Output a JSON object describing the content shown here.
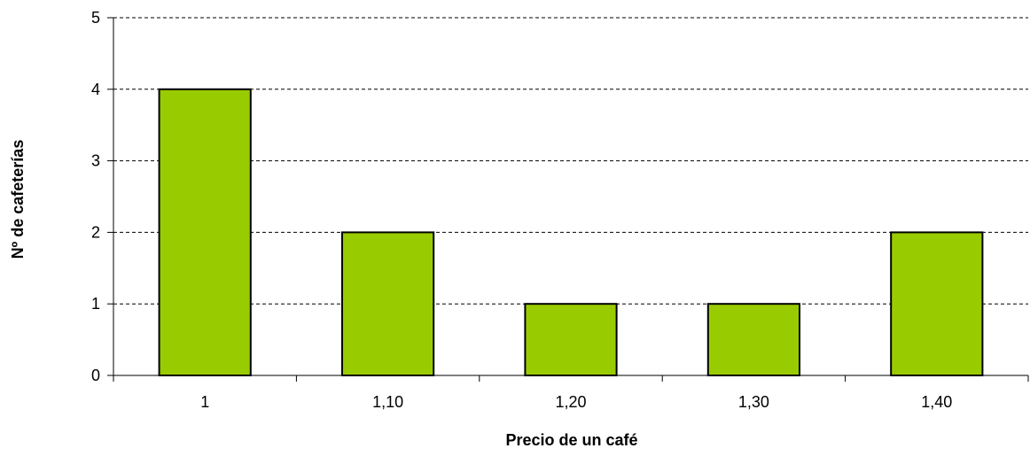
{
  "chart_data": {
    "type": "bar",
    "title": "",
    "xlabel": "Precio de un café",
    "ylabel": "Nº de cafeterías",
    "categories": [
      "1",
      "1,10",
      "1,20",
      "1,30",
      "1,40"
    ],
    "values": [
      4,
      2,
      1,
      1,
      2
    ],
    "ylim": [
      0,
      5
    ],
    "yticks": [
      "0",
      "1",
      "2",
      "3",
      "4",
      "5"
    ],
    "grid": "horizontal-dashed",
    "legend": "none",
    "bar_color": "#99CC00",
    "bar_edge_color": "#000000"
  }
}
